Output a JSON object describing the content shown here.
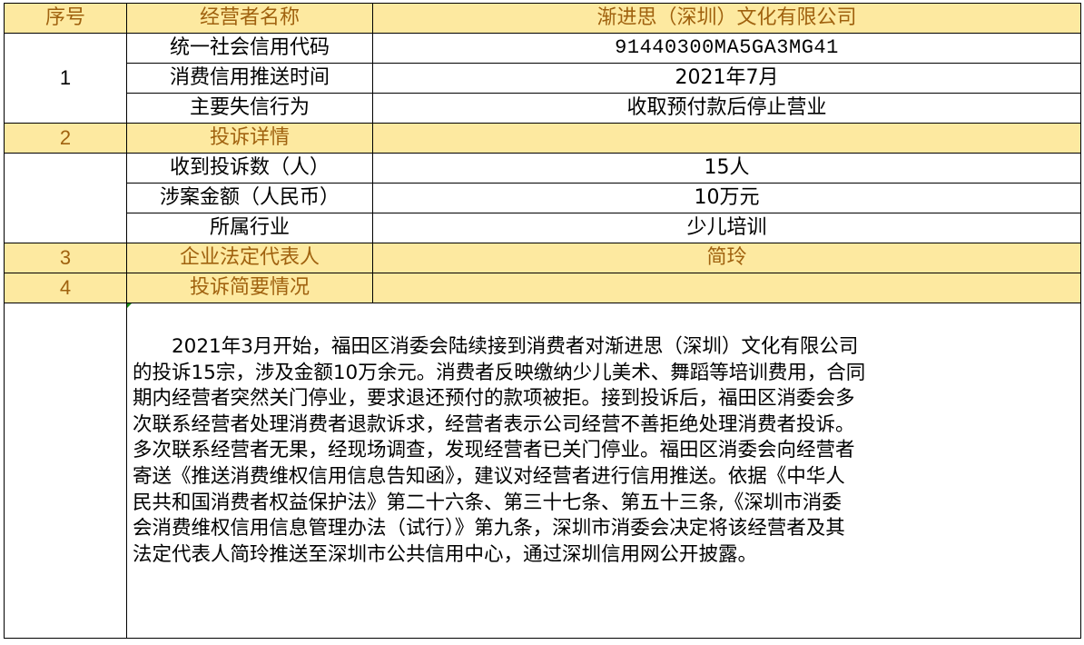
{
  "header": {
    "col1": "序号",
    "col2": "经营者名称",
    "col3": "渐进思（深圳）文化有限公司"
  },
  "section1": {
    "number": "1",
    "rows": [
      {
        "label": "统一社会信用代码",
        "value": "91440300MA5GA3MG41"
      },
      {
        "label": "消费信用推送时间",
        "value": "2021年7月"
      },
      {
        "label": "主要失信行为",
        "value": "收取预付款后停止营业"
      }
    ]
  },
  "section2": {
    "number": "2",
    "title": "投诉详情",
    "rows": [
      {
        "label": "收到投诉数（人）",
        "value": "15人"
      },
      {
        "label": "涉案金额（人民币）",
        "value": "10万元"
      },
      {
        "label": "所属行业",
        "value": "少儿培训"
      }
    ]
  },
  "section3": {
    "number": "3",
    "title": "企业法定代表人",
    "value": "简玲"
  },
  "section4": {
    "number": "4",
    "title": "投诉简要情况",
    "lines": [
      "　　2021年3月开始，福田区消委会陆续接到消费者对渐进思（深圳）文化有限公司",
      "的投诉15宗，涉及金额10万余元。消费者反映缴纳少儿美术、舞蹈等培训费用，合同",
      "期内经营者突然关门停业，要求退还预付的款项被拒。接到投诉后，福田区消委会多",
      "次联系经营者处理消费者退款诉求，经营者表示公司经营不善拒绝处理消费者投诉。",
      "多次联系经营者无果，经现场调查，发现经营者已关门停业。福田区消委会向经营者",
      "寄送《推送消费维权信用信息告知函》，建议对经营者进行信用推送。依据《中华人",
      "民共和国消费者权益保护法》第二十六条、第三十七条、第五十三条,《深圳市消委",
      "会消费维权信用信息管理办法（试行）》第九条，深圳市消委会决定将该经营者及其",
      "法定代表人简玲推送至深圳市公共信用中心，通过深圳信用网公开披露。"
    ]
  },
  "colors": {
    "highlight_bg": "#fde9a0",
    "highlight_text": "#a0620f"
  }
}
